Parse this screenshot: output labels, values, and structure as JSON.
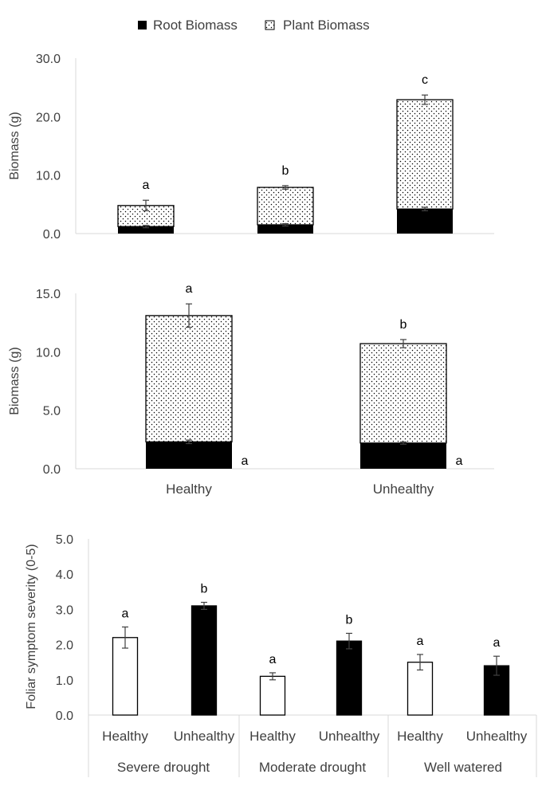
{
  "legend": {
    "placement": "top-center",
    "items": [
      {
        "label": "Root Biomass",
        "fill": "solid-black"
      },
      {
        "label": "Plant Biomass",
        "fill": "dotted"
      }
    ]
  },
  "chart_data": [
    {
      "type": "bar",
      "stacked": true,
      "title": "",
      "ylabel": "Biomass (g)",
      "ylim": [
        0,
        30
      ],
      "yticks": [
        "0.0",
        "10.0",
        "20.0",
        "30.0"
      ],
      "categories": [
        "",
        "",
        ""
      ],
      "series": [
        {
          "name": "Root Biomass",
          "values": [
            1.2,
            1.5,
            4.2
          ],
          "errors": [
            0.2,
            0.2,
            0.3
          ]
        },
        {
          "name": "Plant Biomass",
          "values": [
            3.6,
            6.4,
            18.7
          ],
          "errors": [
            0.9,
            0.3,
            0.8
          ]
        }
      ],
      "annotations": [
        {
          "label": "a",
          "category_index": 0
        },
        {
          "label": "b",
          "category_index": 1
        },
        {
          "label": "c",
          "category_index": 2
        }
      ]
    },
    {
      "type": "bar",
      "stacked": true,
      "title": "",
      "ylabel": "Biomass (g)",
      "ylim": [
        0,
        15
      ],
      "yticks": [
        "0.0",
        "5.0",
        "10.0",
        "15.0"
      ],
      "categories": [
        "Healthy",
        "Unhealthy"
      ],
      "series": [
        {
          "name": "Root Biomass",
          "values": [
            2.3,
            2.2
          ],
          "errors": [
            0.15,
            0.1
          ]
        },
        {
          "name": "Plant Biomass",
          "values": [
            10.8,
            8.5
          ],
          "errors": [
            1.0,
            0.35
          ]
        }
      ],
      "annotations": [
        {
          "label": "a",
          "category_index": 0,
          "position": "top"
        },
        {
          "label": "b",
          "category_index": 1,
          "position": "top"
        },
        {
          "label": "a",
          "category_index": 0,
          "position": "root"
        },
        {
          "label": "a",
          "category_index": 1,
          "position": "root"
        }
      ]
    },
    {
      "type": "bar",
      "title": "",
      "ylabel": "Foliar symptom severity (0-5)",
      "ylim": [
        0,
        5
      ],
      "yticks": [
        "0.0",
        "1.0",
        "2.0",
        "3.0",
        "4.0",
        "5.0"
      ],
      "groups": [
        "Severe drought",
        "Moderate drought",
        "Well watered"
      ],
      "categories": [
        "Healthy",
        "Unhealthy",
        "Healthy",
        "Unhealthy",
        "Healthy",
        "Unhealthy"
      ],
      "values": [
        2.2,
        3.1,
        1.1,
        2.1,
        1.5,
        1.4
      ],
      "errors": [
        0.3,
        0.1,
        0.1,
        0.22,
        0.22,
        0.27
      ],
      "fills": [
        "#ffffff",
        "#000000",
        "#ffffff",
        "#000000",
        "#ffffff",
        "#000000"
      ],
      "annotations": [
        "a",
        "b",
        "a",
        "b",
        "a",
        "a"
      ]
    }
  ]
}
